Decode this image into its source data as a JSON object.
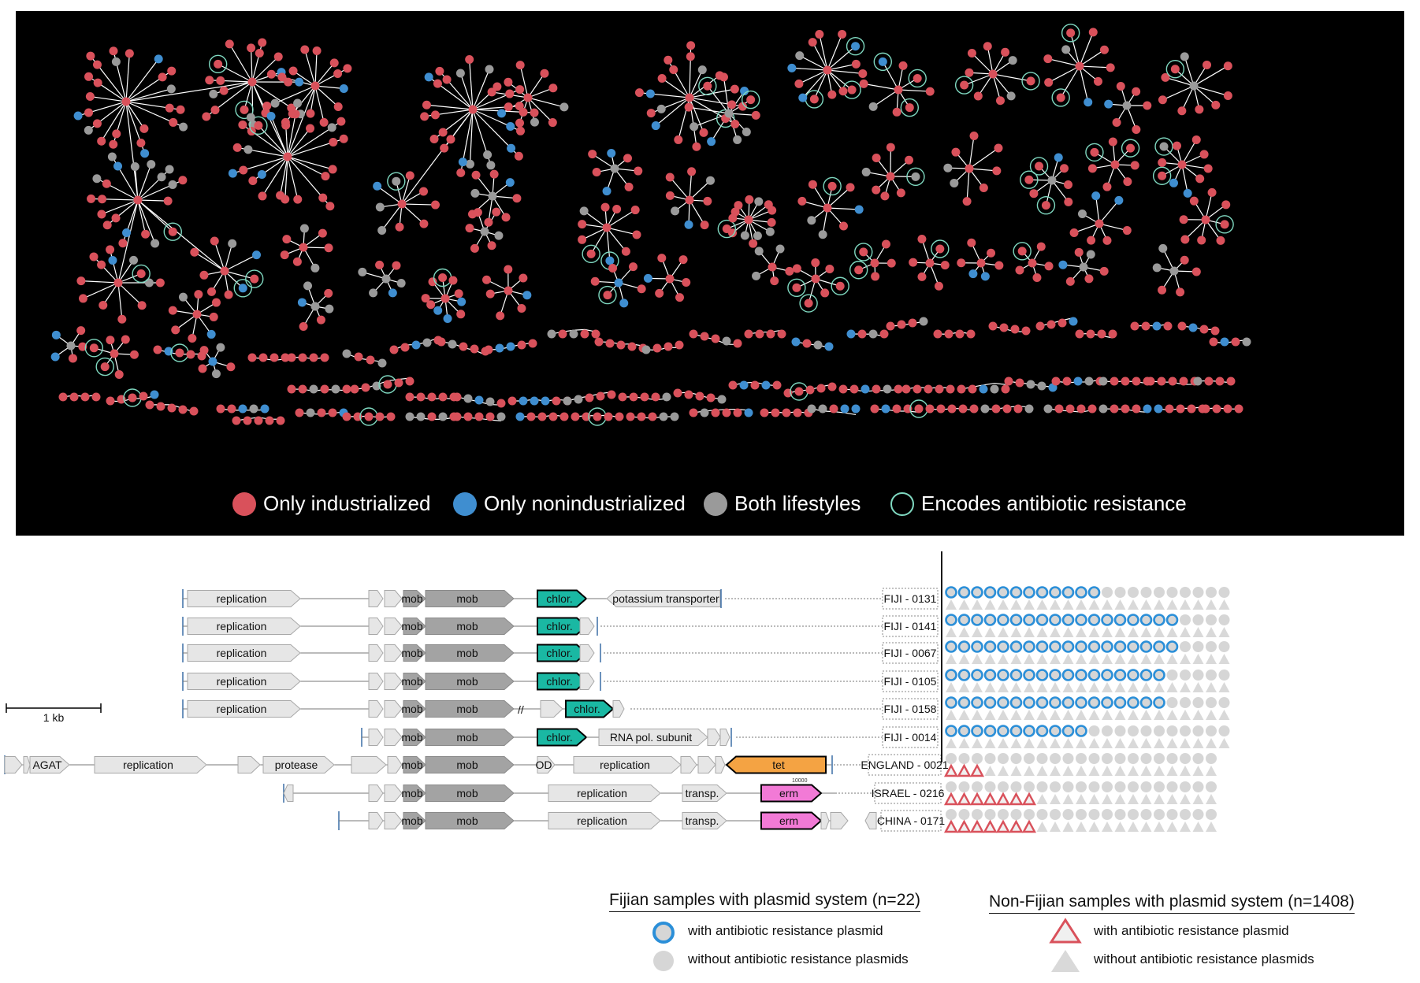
{
  "network_legend": {
    "industrialized": {
      "label": "Only industrialized",
      "color": "#d9515b"
    },
    "nonindustrialized": {
      "label": "Only nonindustrialized",
      "color": "#3f8ed0"
    },
    "both": {
      "label": "Both lifestyles",
      "color": "#9a9a9a"
    },
    "resistance": {
      "label": "Encodes antibiotic resistance",
      "color": "#7fd8c0"
    }
  },
  "gene_colors": {
    "light": "#e6e6e6",
    "mob": "#a3a3a3",
    "chlor": "#1ab8a3",
    "tet": "#f4a343",
    "erm": "#f27ad6"
  },
  "plasmids": [
    {
      "id": "FIJI - 0131",
      "genes": {
        "replication": "replication",
        "mob_small": "mob",
        "mob": "mob",
        "resistance": "chlor.",
        "extra": "potassium transporter"
      },
      "fijian_with": 12,
      "fijian_without": 10
    },
    {
      "id": "FIJI - 0141",
      "genes": {
        "replication": "replication",
        "mob_small": "mob",
        "mob": "mob",
        "resistance": "chlor."
      },
      "fijian_with": 18,
      "fijian_without": 4
    },
    {
      "id": "FIJI - 0067",
      "genes": {
        "replication": "replication",
        "mob_small": "mob",
        "mob": "mob",
        "resistance": "chlor."
      },
      "fijian_with": 18,
      "fijian_without": 4
    },
    {
      "id": "FIJI - 0105",
      "genes": {
        "replication": "replication",
        "mob_small": "mob",
        "mob": "mob",
        "resistance": "chlor."
      },
      "fijian_with": 17,
      "fijian_without": 5
    },
    {
      "id": "FIJI - 0158",
      "genes": {
        "replication": "replication",
        "mob_small": "mob",
        "mob": "mob",
        "resistance": "chlor."
      },
      "fijian_with": 17,
      "fijian_without": 5
    },
    {
      "id": "FIJI - 0014",
      "genes": {
        "mob_small": "mob",
        "mob": "mob",
        "resistance": "chlor.",
        "extra": "RNA pol. subunit"
      },
      "fijian_with": 11,
      "fijian_without": 11
    },
    {
      "id": "ENGLAND - 0021",
      "genes": {
        "agat": "AGAT",
        "replication": "replication",
        "protease": "protease",
        "mob_small": "mob",
        "mob": "mob",
        "od": "OD",
        "replication2": "replication",
        "resistance": "tet"
      },
      "nonfijian_with": 3,
      "nonfijian_without": 18
    },
    {
      "id": "ISRAEL - 0216",
      "genes": {
        "mob_small": "mob",
        "mob": "mob",
        "replication": "replication",
        "transp": "transp.",
        "resistance": "erm"
      },
      "nonfijian_with": 7,
      "nonfijian_without": 14
    },
    {
      "id": "CHINA - 0171",
      "genes": {
        "mob_small": "mob",
        "mob": "mob",
        "replication": "replication",
        "transp": "transp.",
        "resistance": "erm"
      },
      "nonfijian_with": 7,
      "nonfijian_without": 14
    }
  ],
  "scale": {
    "label": "1 kb"
  },
  "tiny_label": "10000",
  "fijian_legend": {
    "title": "Fijian samples with plasmid system (n=22)",
    "with": "with antibiotic resistance plasmid",
    "without": "without antibiotic resistance plasmids"
  },
  "nonfijian_legend": {
    "title": "Non-Fijian samples with plasmid system (n=1408)",
    "with": "with antibiotic resistance plasmid",
    "without": "without antibiotic resistance plasmids"
  }
}
